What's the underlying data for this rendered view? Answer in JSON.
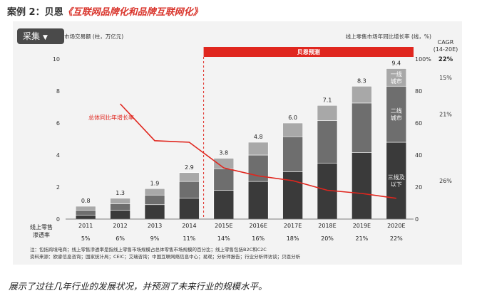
{
  "header": {
    "case_label": "案例 2：贝恩",
    "book_title": "《互联网品牌化和品牌互联网化》"
  },
  "toolbar": {
    "collect_label": "采集"
  },
  "chart_data": {
    "type": "bar",
    "left_axis_label": "线上零售市场交易额 (柱，万亿元)",
    "right_axis_label": "线上零售市场年同比增长率 (线，%)",
    "forecast_banner": "贝恩预测",
    "line_label": "总体同比年增长率",
    "categories": [
      "2011",
      "2012",
      "2013",
      "2014",
      "2015E",
      "2016E",
      "2017E",
      "2018E",
      "2019E",
      "2020E"
    ],
    "totals": [
      0.8,
      1.3,
      1.9,
      2.9,
      3.8,
      4.8,
      6.0,
      7.1,
      8.3,
      9.4
    ],
    "total_labels": [
      "0.8",
      "1.3",
      "1.9",
      "2.9",
      "3.8",
      "4.8",
      "6.0",
      "7.1",
      "8.3",
      "9.4"
    ],
    "series": [
      {
        "name": "三线及以下",
        "label_lines": [
          "三线及",
          "以下"
        ],
        "color": "#3a3a3a",
        "values": [
          0.25,
          0.55,
          0.9,
          1.3,
          1.8,
          2.35,
          2.95,
          3.5,
          4.15,
          4.8
        ]
      },
      {
        "name": "二线城市",
        "label_lines": [
          "二线",
          "城市"
        ],
        "color": "#6e6e6e",
        "values": [
          0.3,
          0.4,
          0.6,
          1.05,
          1.35,
          1.65,
          2.2,
          2.65,
          3.1,
          3.5
        ]
      },
      {
        "name": "一线城市",
        "label_lines": [
          "一线",
          "城市"
        ],
        "color": "#a8a8a8",
        "values": [
          0.25,
          0.35,
          0.4,
          0.55,
          0.65,
          0.8,
          0.85,
          0.95,
          1.05,
          1.1
        ]
      }
    ],
    "growth_rate": [
      null,
      72,
      49,
      48,
      32,
      27,
      24,
      18,
      16,
      13
    ],
    "ylim_left": [
      0,
      10
    ],
    "yticks_left": [
      "0",
      "2",
      "4",
      "6",
      "8",
      "10"
    ],
    "ylim_right": [
      0,
      100
    ],
    "yticks_right": [
      "0",
      "20",
      "40",
      "60",
      "80",
      "100%"
    ],
    "forecast_start_index": 4,
    "cagr": {
      "title_lines": [
        "CAGR",
        "(14-20E)"
      ],
      "total": "22%",
      "by_segment": [
        "15%",
        "21%",
        "26%"
      ]
    },
    "penetration": {
      "row_label_lines": [
        "线上零售",
        "渗透率"
      ],
      "values": [
        "5%",
        "6%",
        "9%",
        "11%",
        "14%",
        "16%",
        "18%",
        "20%",
        "21%",
        "22%"
      ]
    },
    "notes": [
      "注：包括跨境电商；线上零售渗透率是指线上零售市场规模占总体零售市场规模的百分比；线上零售包括B2C和C2C",
      "资料来源：欧睿信息咨询；国家统计局；CEIC；艾瑞咨询；中国互联网络信息中心；易观；分析师报告；行业分析师访谈；贝恩分析"
    ],
    "grid": false,
    "legend": "inline-on-last-bar"
  },
  "caption": "展示了过往几年行业的发展状况，并预测了未来行业的规模水平。"
}
